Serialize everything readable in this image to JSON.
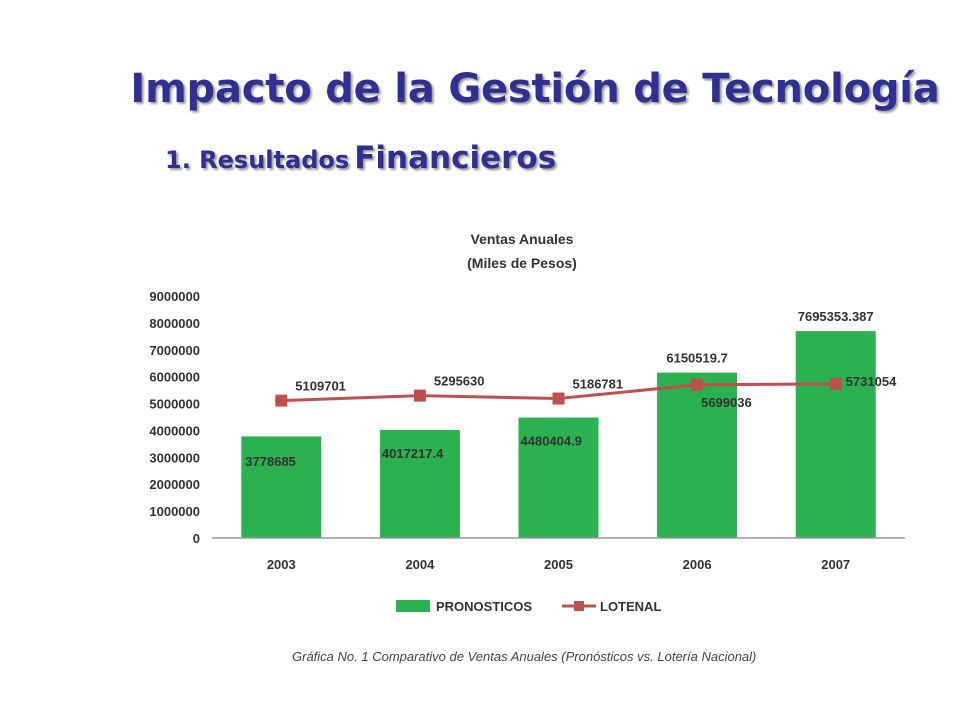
{
  "slide": {
    "title": "Impacto de la Gestión de Tecnología",
    "subtitle_number": "1. Resultados",
    "subtitle_word": "Financieros"
  },
  "colors": {
    "title": "#2e3192",
    "bars": "#2bb14f",
    "line": "#c0504d",
    "axis": "#9a9a9a",
    "text": "#333333"
  },
  "chart_data": {
    "type": "bar",
    "title": "Ventas Anuales",
    "subtitle": "(Miles de Pesos)",
    "categories": [
      "2003",
      "2004",
      "2005",
      "2006",
      "2007"
    ],
    "ylim": [
      0,
      9000000
    ],
    "yticks": [
      "0",
      "1000000",
      "2000000",
      "3000000",
      "4000000",
      "5000000",
      "6000000",
      "7000000",
      "8000000",
      "9000000"
    ],
    "grid": false,
    "legend_position": "bottom",
    "series": [
      {
        "name": "PRONOSTICOS",
        "type": "bar",
        "values": [
          3778685,
          4017217.4,
          4480404.9,
          6150519.7,
          7695353.387
        ],
        "labels": [
          "3778685",
          "4017217.4",
          "4480404.9",
          "6150519.7",
          "7695353.387"
        ]
      },
      {
        "name": "LOTENAL",
        "type": "line",
        "values": [
          5109701,
          5295630,
          5186781,
          5699036,
          5731054
        ],
        "labels": [
          "5109701",
          "5295630",
          "5186781",
          "5699036",
          "5731054"
        ]
      }
    ],
    "caption": "Gráfica No. 1 Comparativo de Ventas Anuales (Pronósticos vs. Lotería Nacional)"
  }
}
